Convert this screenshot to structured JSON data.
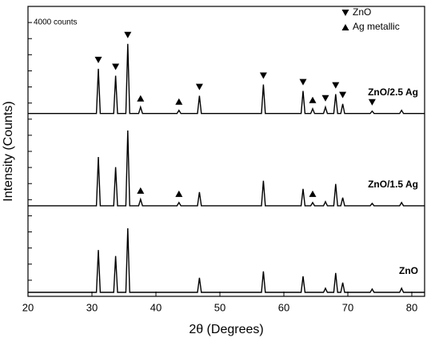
{
  "chart_data": {
    "type": "line",
    "x_label": "2θ (Degrees)",
    "y_label": "Intensity (Counts)",
    "scale_note": "4000 counts",
    "xlim": [
      20,
      82
    ],
    "xticks": [
      20,
      30,
      40,
      50,
      60,
      70,
      80
    ],
    "ylim": [
      0,
      72000
    ],
    "yticks": [
      0,
      4000,
      8000,
      12000,
      16000,
      20000,
      24000,
      28000,
      32000,
      36000,
      40000,
      44000,
      48000,
      52000,
      56000,
      60000,
      64000,
      68000,
      72000
    ],
    "legend": [
      {
        "symbol": "down",
        "label": "ZnO"
      },
      {
        "symbol": "up",
        "label": "Ag metallic"
      }
    ],
    "series": [
      {
        "name": "ZnO/2.5 Ag",
        "color": "#000000",
        "x": [
          20,
          30.7,
          31.0,
          31.3,
          33.4,
          33.7,
          34.0,
          35.3,
          35.6,
          35.9,
          37.3,
          37.6,
          37.9,
          43.3,
          43.6,
          43.9,
          46.5,
          46.8,
          47.1,
          56.5,
          56.8,
          57.1,
          62.7,
          63.0,
          63.3,
          64.2,
          64.5,
          64.8,
          66.2,
          66.5,
          66.8,
          67.8,
          68.1,
          68.4,
          68.9,
          69.2,
          69.5,
          73.5,
          73.8,
          74.1,
          78.1,
          78.4,
          78.7,
          82
        ],
        "values": [
          45400,
          45400,
          56500,
          45400,
          45400,
          54800,
          45400,
          45400,
          62700,
          45400,
          45400,
          47000,
          45400,
          45400,
          46200,
          45400,
          45400,
          49800,
          45400,
          45400,
          52600,
          45400,
          45400,
          51000,
          45400,
          45400,
          46600,
          45400,
          45400,
          47000,
          45400,
          45400,
          50200,
          45400,
          45400,
          47800,
          45400,
          45400,
          46000,
          45400,
          45400,
          46200,
          45400,
          45400
        ],
        "zno_markers": [
          31.0,
          33.7,
          35.6,
          46.8,
          56.8,
          63.0,
          66.5,
          68.1,
          69.2,
          73.8
        ],
        "ag_markers": [
          37.6,
          43.6,
          64.5
        ]
      },
      {
        "name": "ZnO/1.5 Ag",
        "color": "#000000",
        "x": [
          20,
          30.7,
          31.0,
          31.3,
          33.4,
          33.7,
          34.0,
          35.3,
          35.6,
          35.9,
          37.3,
          37.6,
          37.9,
          43.3,
          43.6,
          43.9,
          46.5,
          46.8,
          47.1,
          56.5,
          56.8,
          57.1,
          62.7,
          63.0,
          63.3,
          64.2,
          64.5,
          64.8,
          66.2,
          66.5,
          66.8,
          67.8,
          68.1,
          68.4,
          68.9,
          69.2,
          69.5,
          73.5,
          73.8,
          74.1,
          78.1,
          78.4,
          78.7,
          82
        ],
        "values": [
          22500,
          22500,
          34600,
          22500,
          22500,
          32100,
          22500,
          22500,
          41200,
          22500,
          22500,
          24100,
          22500,
          22500,
          23300,
          22500,
          22500,
          25900,
          22500,
          22500,
          28700,
          22500,
          22500,
          26700,
          22500,
          22500,
          23300,
          22500,
          22500,
          23500,
          22500,
          22500,
          27900,
          22500,
          22500,
          24500,
          22500,
          22500,
          23100,
          22500,
          22500,
          23300,
          22500,
          22500
        ],
        "zno_markers": [],
        "ag_markers": [
          37.6,
          43.6,
          64.5
        ]
      },
      {
        "name": "ZnO",
        "color": "#000000",
        "x": [
          20,
          30.7,
          31.0,
          31.3,
          33.4,
          33.7,
          34.0,
          35.3,
          35.6,
          35.9,
          46.5,
          46.8,
          47.1,
          56.5,
          56.8,
          57.1,
          62.7,
          63.0,
          63.3,
          66.2,
          66.5,
          66.8,
          67.8,
          68.1,
          68.4,
          68.9,
          69.2,
          69.5,
          73.5,
          73.8,
          74.1,
          78.1,
          78.4,
          78.7,
          82
        ],
        "values": [
          1000,
          1000,
          11500,
          1000,
          1000,
          10000,
          1000,
          1000,
          16900,
          1000,
          1000,
          4600,
          1000,
          1000,
          6200,
          1000,
          1000,
          5000,
          1000,
          1000,
          2000,
          1000,
          1000,
          5800,
          1000,
          1000,
          3400,
          1000,
          1000,
          1800,
          1000,
          1000,
          2000,
          1000,
          1000
        ],
        "zno_markers": [],
        "ag_markers": []
      }
    ]
  }
}
